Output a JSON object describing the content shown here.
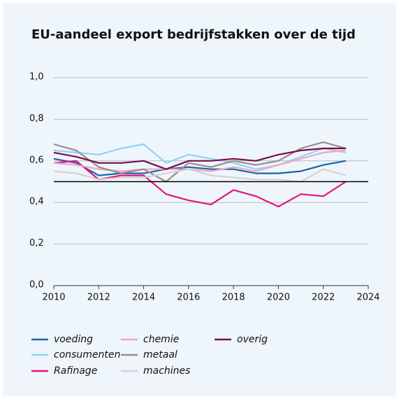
{
  "chart_data": {
    "type": "line",
    "title": "EU-aandeel export bedrijfstakken over de tijd",
    "x": [
      2010,
      2011,
      2012,
      2013,
      2014,
      2015,
      2016,
      2017,
      2018,
      2019,
      2020,
      2021,
      2022,
      2023
    ],
    "xlim": [
      2010,
      2024
    ],
    "xticks": [
      2010,
      2012,
      2014,
      2016,
      2018,
      2020,
      2022,
      2024
    ],
    "ylim": [
      0,
      1
    ],
    "yticks": [
      {
        "value": 0,
        "label": "0,0"
      },
      {
        "value": 0.2,
        "label": "0,2"
      },
      {
        "value": 0.4,
        "label": "0,4"
      },
      {
        "value": 0.6,
        "label": "0,6"
      },
      {
        "value": 0.8,
        "label": "0,8"
      },
      {
        "value": 1,
        "label": "1,0"
      }
    ],
    "grid": true,
    "reference_line": 0.5,
    "series": [
      {
        "name": "voeding",
        "color": "#1a64a8",
        "values": [
          0.61,
          0.59,
          0.53,
          0.54,
          0.54,
          0.56,
          0.57,
          0.56,
          0.56,
          0.54,
          0.54,
          0.55,
          0.58,
          0.6
        ]
      },
      {
        "name": "consumenten",
        "color": "#92d2f5",
        "values": [
          0.65,
          0.64,
          0.63,
          0.66,
          0.68,
          0.59,
          0.63,
          0.61,
          0.59,
          0.56,
          0.58,
          0.62,
          0.66,
          0.64
        ]
      },
      {
        "name": "Rafinage",
        "color": "#e2157c",
        "values": [
          0.59,
          0.6,
          0.51,
          0.53,
          0.53,
          0.44,
          0.41,
          0.39,
          0.46,
          0.43,
          0.38,
          0.44,
          0.43,
          0.5
        ]
      },
      {
        "name": "chemie",
        "color": "#f2a3c6",
        "values": [
          0.59,
          0.58,
          0.56,
          0.55,
          0.56,
          0.56,
          0.56,
          0.55,
          0.57,
          0.55,
          0.58,
          0.61,
          0.64,
          0.65
        ]
      },
      {
        "name": "metaal",
        "color": "#9a8b88",
        "values": [
          0.68,
          0.65,
          0.57,
          0.54,
          0.56,
          0.5,
          0.59,
          0.57,
          0.6,
          0.58,
          0.6,
          0.66,
          0.69,
          0.66
        ]
      },
      {
        "name": "machines",
        "color": "#d8d0d0",
        "values": [
          0.55,
          0.54,
          0.51,
          0.52,
          0.52,
          0.54,
          0.56,
          0.53,
          0.52,
          0.51,
          0.51,
          0.5,
          0.56,
          0.53
        ]
      },
      {
        "name": "overig",
        "color": "#7a0c4c",
        "values": [
          0.64,
          0.62,
          0.59,
          0.59,
          0.6,
          0.56,
          0.6,
          0.6,
          0.61,
          0.6,
          0.63,
          0.65,
          0.66,
          0.66
        ]
      }
    ]
  }
}
